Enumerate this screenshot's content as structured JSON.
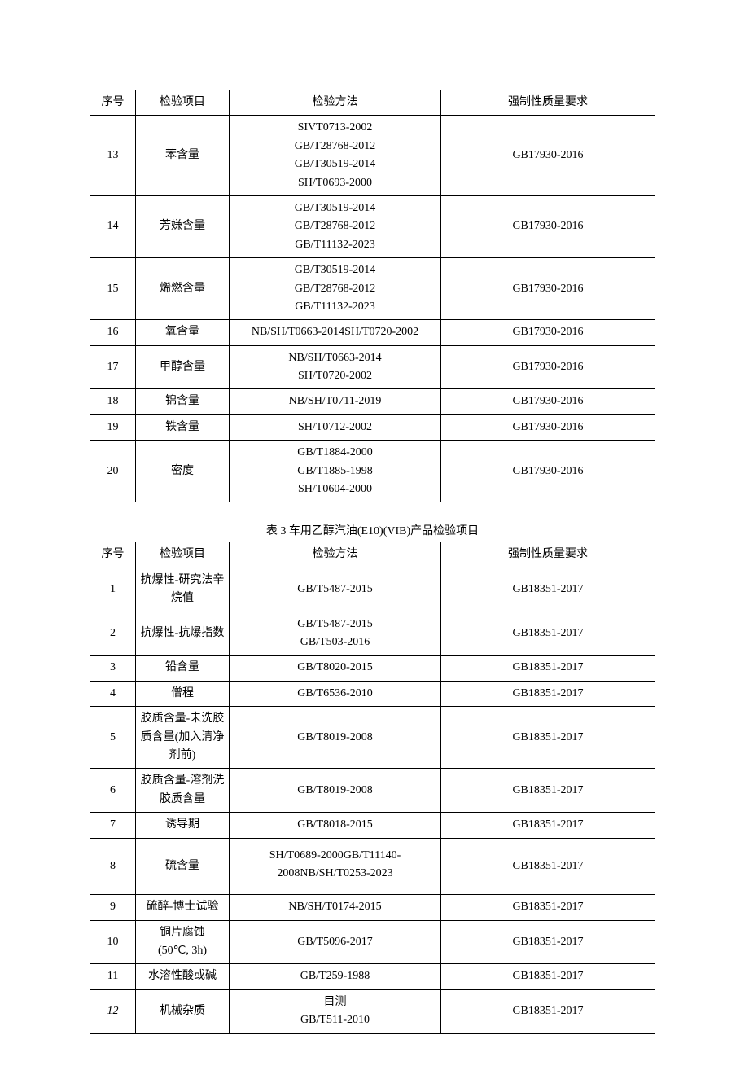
{
  "table1": {
    "headers": {
      "seq": "序号",
      "item": "检验项目",
      "method": "检验方法",
      "req": "强制性质量要求"
    },
    "rows": [
      {
        "seq": "13",
        "item": "苯含量",
        "methods": [
          "SIVT0713-2002",
          "GB/T28768-2012",
          "GB/T30519-2014",
          "SH/T0693-2000"
        ],
        "req": "GB17930-2016"
      },
      {
        "seq": "14",
        "item": "芳嫌含量",
        "methods": [
          "GB/T30519-2014",
          "GB/T28768-2012",
          "GB/T11132-2023"
        ],
        "req": "GB17930-2016"
      },
      {
        "seq": "15",
        "item": "烯燃含量",
        "methods": [
          "GB/T30519-2014",
          "GB/T28768-2012",
          "GB/T11132-2023"
        ],
        "req": "GB17930-2016"
      },
      {
        "seq": "16",
        "item": "氧含量",
        "methods": [
          "NB/SH/T0663-2014SH/T0720-2002"
        ],
        "req": "GB17930-2016"
      },
      {
        "seq": "17",
        "item": "甲醇含量",
        "methods": [
          "NB/SH/T0663-2014",
          "SH/T0720-2002"
        ],
        "req": "GB17930-2016"
      },
      {
        "seq": "18",
        "item": "锦含量",
        "methods": [
          "NB/SH/T0711-2019"
        ],
        "req": "GB17930-2016"
      },
      {
        "seq": "19",
        "item": "铁含量",
        "methods": [
          "SH/T0712-2002"
        ],
        "req": "GB17930-2016"
      },
      {
        "seq": "20",
        "item": "密度",
        "methods": [
          "GB/T1884-2000",
          "GB/T1885-1998",
          "SH/T0604-2000"
        ],
        "req": "GB17930-2016"
      }
    ]
  },
  "caption2": "表 3 车用乙醇汽油(E10)(VIB)产品检验项目",
  "table2": {
    "headers": {
      "seq": "序号",
      "item": "检验项目",
      "method": "检验方法",
      "req": "强制性质量要求"
    },
    "rows": [
      {
        "seq": "1",
        "item": "抗爆性-研究法辛烷值",
        "methods": [
          "GB/T5487-2015"
        ],
        "req": "GB18351-2017"
      },
      {
        "seq": "2",
        "item": "抗爆性-抗爆指数",
        "methods": [
          "GB/T5487-2015",
          "GB/T503-2016"
        ],
        "req": "GB18351-2017"
      },
      {
        "seq": "3",
        "item": "铅含量",
        "methods": [
          "GB/T8020-2015"
        ],
        "req": "GB18351-2017"
      },
      {
        "seq": "4",
        "item": "僧程",
        "methods": [
          "GB/T6536-2010"
        ],
        "req": "GB18351-2017"
      },
      {
        "seq": "5",
        "item": "胶质含量-未洗胶质含量(加入清净剂前)",
        "methods": [
          "GB/T8019-2008"
        ],
        "req": "GB18351-2017"
      },
      {
        "seq": "6",
        "item": "胶质含量-溶剂洗胶质含量",
        "methods": [
          "GB/T8019-2008"
        ],
        "req": "GB18351-2017"
      },
      {
        "seq": "7",
        "item": "诱导期",
        "methods": [
          "GB/T8018-2015"
        ],
        "req": "GB18351-2017"
      },
      {
        "seq": "8",
        "item": "硫含量",
        "methods": [
          "SH/T0689-2000GB/T11140-",
          "2008NB/SH/T0253-2023"
        ],
        "req": "GB18351-2017",
        "pad": true
      },
      {
        "seq": "9",
        "item": "硫醉-博士试验",
        "methods": [
          "NB/SH/T0174-2015"
        ],
        "req": "GB18351-2017"
      },
      {
        "seq": "10",
        "item_lines": [
          "铜片腐蚀",
          "(50℃, 3h)"
        ],
        "methods": [
          "GB/T5096-2017"
        ],
        "req": "GB18351-2017"
      },
      {
        "seq": "11",
        "item": "水溶性酸或碱",
        "methods": [
          "GB/T259-1988"
        ],
        "req": "GB18351-2017"
      },
      {
        "seq": "12",
        "seq_italic": true,
        "item": "机械杂质",
        "methods": [
          "目测",
          "GB/T511-2010"
        ],
        "req": "GB18351-2017"
      }
    ]
  }
}
